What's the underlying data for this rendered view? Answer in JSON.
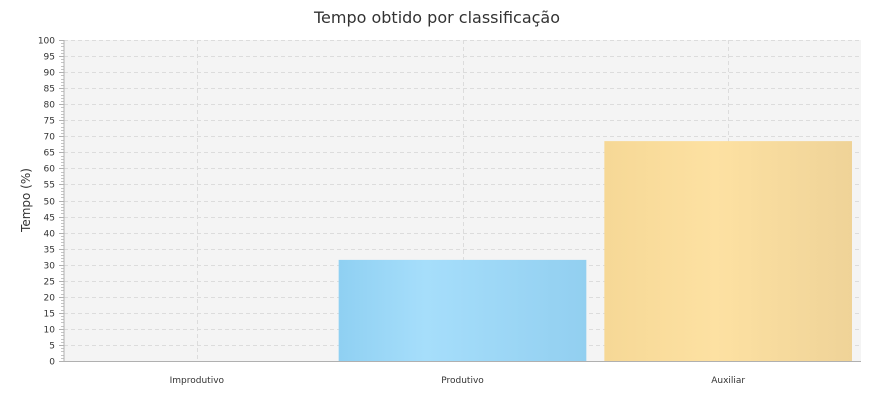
{
  "chart_data": {
    "type": "bar",
    "title": "Tempo obtido por classificação",
    "xlabel": "",
    "ylabel": "Tempo (%)",
    "ylim": [
      0,
      100
    ],
    "y_ticks": [
      "0",
      "5",
      "10",
      "15",
      "20",
      "25",
      "30",
      "35",
      "40",
      "45",
      "50",
      "55",
      "60",
      "65",
      "70",
      "75",
      "80",
      "85",
      "90",
      "95",
      "100"
    ],
    "categories": [
      "Improdutivo",
      "Produtivo",
      "Auxiliar"
    ],
    "values": [
      0,
      31.5,
      68.5
    ],
    "colors": [
      "#f4c842",
      "#9dd7f5",
      "#fadc9c"
    ],
    "grid": true,
    "background": "#f4f4f4"
  }
}
